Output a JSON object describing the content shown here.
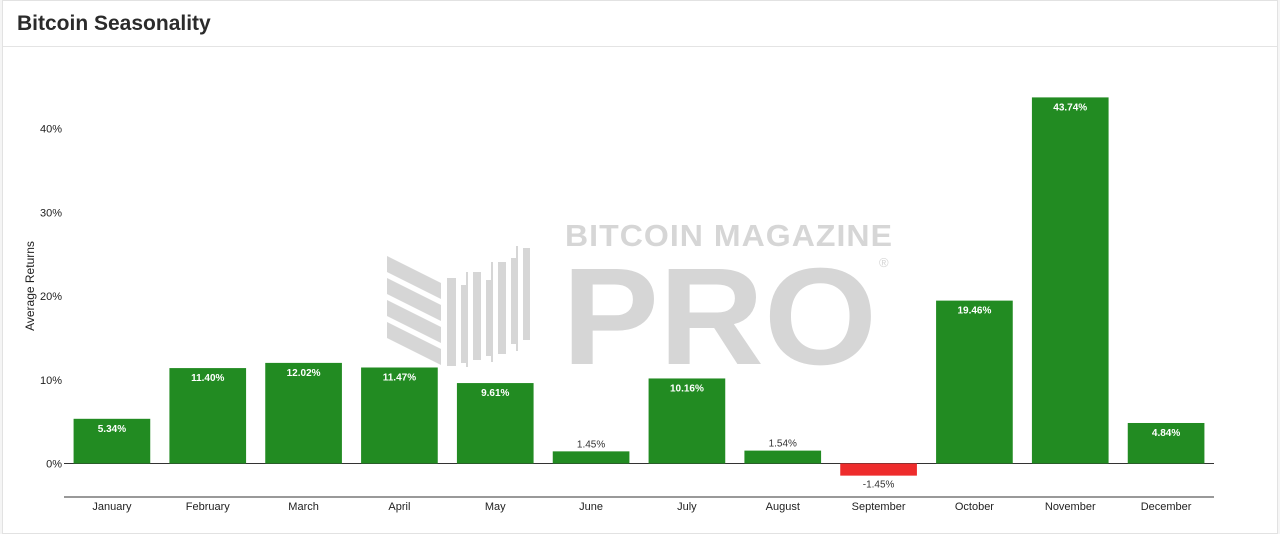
{
  "title": "Bitcoin Seasonality",
  "watermark": {
    "top_text": "BITCOIN MAGAZINE",
    "main_text": "PRO",
    "registered": "®"
  },
  "colors": {
    "positive": "#228b22",
    "negative": "#ee2c2c",
    "watermark": "#d6d6d6"
  },
  "chart_data": {
    "type": "bar",
    "categories": [
      "January",
      "February",
      "March",
      "April",
      "May",
      "June",
      "July",
      "August",
      "September",
      "October",
      "November",
      "December"
    ],
    "values": [
      5.34,
      11.4,
      12.02,
      11.47,
      9.61,
      1.45,
      10.16,
      1.54,
      -1.45,
      19.46,
      43.74,
      4.84
    ],
    "labels": [
      "5.34%",
      "11.40%",
      "12.02%",
      "11.47%",
      "9.61%",
      "1.45%",
      "10.16%",
      "1.54%",
      "-1.45%",
      "19.46%",
      "43.74%",
      "4.84%"
    ],
    "ylabel": "Average Returns",
    "yticks": [
      0,
      10,
      20,
      30,
      40
    ],
    "ytick_labels": [
      "0%",
      "10%",
      "20%",
      "30%",
      "40%"
    ],
    "ylim": [
      -4.7,
      45
    ],
    "grid": false,
    "legend": false
  }
}
